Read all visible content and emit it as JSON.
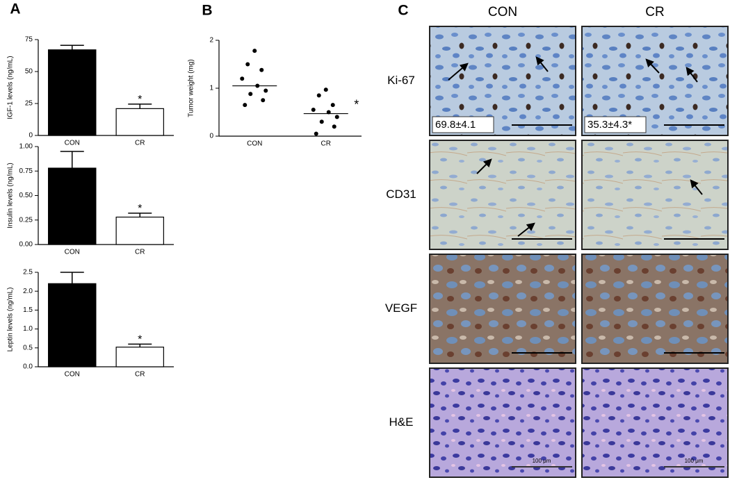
{
  "panel_labels": [
    "A",
    "B",
    "C"
  ],
  "chart_data": [
    {
      "type": "bar",
      "ylabel": "IGF-1 levels (ng/mL)",
      "categories": [
        "CON",
        "CR"
      ],
      "values": [
        67,
        21
      ],
      "errors": [
        3.5,
        3.5
      ],
      "colors": [
        "#000000",
        "#ffffff"
      ],
      "ylim": [
        0,
        75
      ],
      "yticks": [
        0,
        25,
        50,
        75
      ],
      "annotation": "*"
    },
    {
      "type": "bar",
      "ylabel": "Insulin levels (ng/mL)",
      "categories": [
        "CON",
        "CR"
      ],
      "values": [
        0.78,
        0.28
      ],
      "errors": [
        0.17,
        0.04
      ],
      "colors": [
        "#000000",
        "#ffffff"
      ],
      "ylim": [
        0,
        1
      ],
      "yticks": [
        {
          "value": 0,
          "label": "0.00"
        },
        {
          "value": 0.25,
          "label": "0.25"
        },
        {
          "value": 0.5,
          "label": "0.50"
        },
        {
          "value": 0.75,
          "label": "0.75"
        },
        {
          "value": 1,
          "label": "1.00"
        }
      ],
      "annotation": "*"
    },
    {
      "type": "bar",
      "ylabel": "Leptin levels (ng/mL)",
      "categories": [
        "CON",
        "CR"
      ],
      "values": [
        2.2,
        0.52
      ],
      "errors": [
        0.3,
        0.08
      ],
      "colors": [
        "#000000",
        "#ffffff"
      ],
      "ylim": [
        0,
        2.5
      ],
      "yticks": [
        {
          "value": 0,
          "label": "0.0"
        },
        {
          "value": 0.5,
          "label": "0.5"
        },
        {
          "value": 1,
          "label": "1.0"
        },
        {
          "value": 1.5,
          "label": "1.5"
        },
        {
          "value": 2,
          "label": "2.0"
        },
        {
          "value": 2.5,
          "label": "2.5"
        }
      ],
      "annotation": "*"
    },
    {
      "type": "dot",
      "ylabel": "Tumor weight (mg)",
      "categories": [
        "CON",
        "CR"
      ],
      "values": [
        [
          1.78,
          1.5,
          1.38,
          1.2,
          1.05,
          0.95,
          0.88,
          0.75,
          0.65
        ],
        [
          0.97,
          0.85,
          0.65,
          0.55,
          0.5,
          0.4,
          0.3,
          0.2,
          0.05
        ]
      ],
      "means": [
        1.05,
        0.47
      ],
      "color": "#000000",
      "ylim": [
        0,
        2
      ],
      "yticks": [
        0,
        1,
        2
      ],
      "annotation": "*"
    }
  ],
  "panel_c": {
    "columns": [
      "CON",
      "CR"
    ],
    "rows": [
      "Ki-67",
      "CD31",
      "VEGF",
      "H&E"
    ],
    "quantification": [
      "69.8±4.1",
      "35.3±4.3*"
    ],
    "scale_labels": [
      "100 μm",
      "100 μm"
    ]
  }
}
